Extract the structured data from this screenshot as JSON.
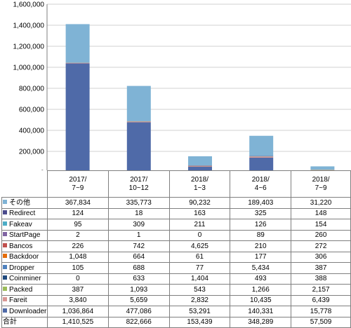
{
  "chart_data": {
    "type": "bar",
    "stacked": true,
    "categories": [
      {
        "line1": "2017/",
        "line2": "7~9"
      },
      {
        "line1": "2017/",
        "line2": "10~12"
      },
      {
        "line1": "2018/",
        "line2": "1~3"
      },
      {
        "line1": "2018/",
        "line2": "4~6"
      },
      {
        "line1": "2018/",
        "line2": "7~9"
      }
    ],
    "y_ticks": [
      "0",
      "200,000",
      "400,000",
      "600,000",
      "800,000",
      "1,000,000",
      "1,200,000",
      "1,400,000",
      "1,600,000"
    ],
    "ylim": [
      0,
      1600000
    ],
    "grid": true,
    "legend": "table-left",
    "series": [
      {
        "name": "その他",
        "color": "#7fb3d5",
        "values": [
          367834,
          335773,
          90232,
          189403,
          31220
        ],
        "labels": [
          "367,834",
          "335,773",
          "90,232",
          "189,403",
          "31,220"
        ]
      },
      {
        "name": "Redirect",
        "color": "#4a4a8c",
        "values": [
          124,
          18,
          163,
          325,
          148
        ],
        "labels": [
          "124",
          "18",
          "163",
          "325",
          "148"
        ]
      },
      {
        "name": "Fakeav",
        "color": "#4bacc6",
        "values": [
          95,
          309,
          211,
          126,
          154
        ],
        "labels": [
          "95",
          "309",
          "211",
          "126",
          "154"
        ]
      },
      {
        "name": "StartPage",
        "color": "#8064a2",
        "values": [
          2,
          1,
          0,
          89,
          260
        ],
        "labels": [
          "2",
          "1",
          "0",
          "89",
          "260"
        ]
      },
      {
        "name": "Bancos",
        "color": "#c0504d",
        "values": [
          226,
          742,
          4625,
          210,
          272
        ],
        "labels": [
          "226",
          "742",
          "4,625",
          "210",
          "272"
        ]
      },
      {
        "name": "Backdoor",
        "color": "#e46c0a",
        "values": [
          1048,
          664,
          61,
          177,
          306
        ],
        "labels": [
          "1,048",
          "664",
          "61",
          "177",
          "306"
        ]
      },
      {
        "name": "Dropper",
        "color": "#4f81bd",
        "values": [
          105,
          688,
          77,
          5434,
          387
        ],
        "labels": [
          "105",
          "688",
          "77",
          "5,434",
          "387"
        ]
      },
      {
        "name": "Coinminer",
        "color": "#1f497d",
        "values": [
          0,
          633,
          1404,
          493,
          388
        ],
        "labels": [
          "0",
          "633",
          "1,404",
          "493",
          "388"
        ]
      },
      {
        "name": "Packed",
        "color": "#9bbb59",
        "values": [
          387,
          1093,
          543,
          1266,
          2157
        ],
        "labels": [
          "387",
          "1,093",
          "543",
          "1,266",
          "2,157"
        ]
      },
      {
        "name": "Fareit",
        "color": "#d99694",
        "values": [
          3840,
          5659,
          2832,
          10435,
          6439
        ],
        "labels": [
          "3,840",
          "5,659",
          "2,832",
          "10,435",
          "6,439"
        ]
      },
      {
        "name": "Downloader",
        "color": "#4f6aa8",
        "values": [
          1036864,
          477086,
          53291,
          140331,
          15778
        ],
        "labels": [
          "1,036,864",
          "477,086",
          "53,291",
          "140,331",
          "15,778"
        ]
      }
    ],
    "total": {
      "name": "合計",
      "values": [
        1410525,
        822666,
        153439,
        348289,
        57509
      ],
      "labels": [
        "1,410,525",
        "822,666",
        "153,439",
        "348,289",
        "57,509"
      ]
    }
  }
}
